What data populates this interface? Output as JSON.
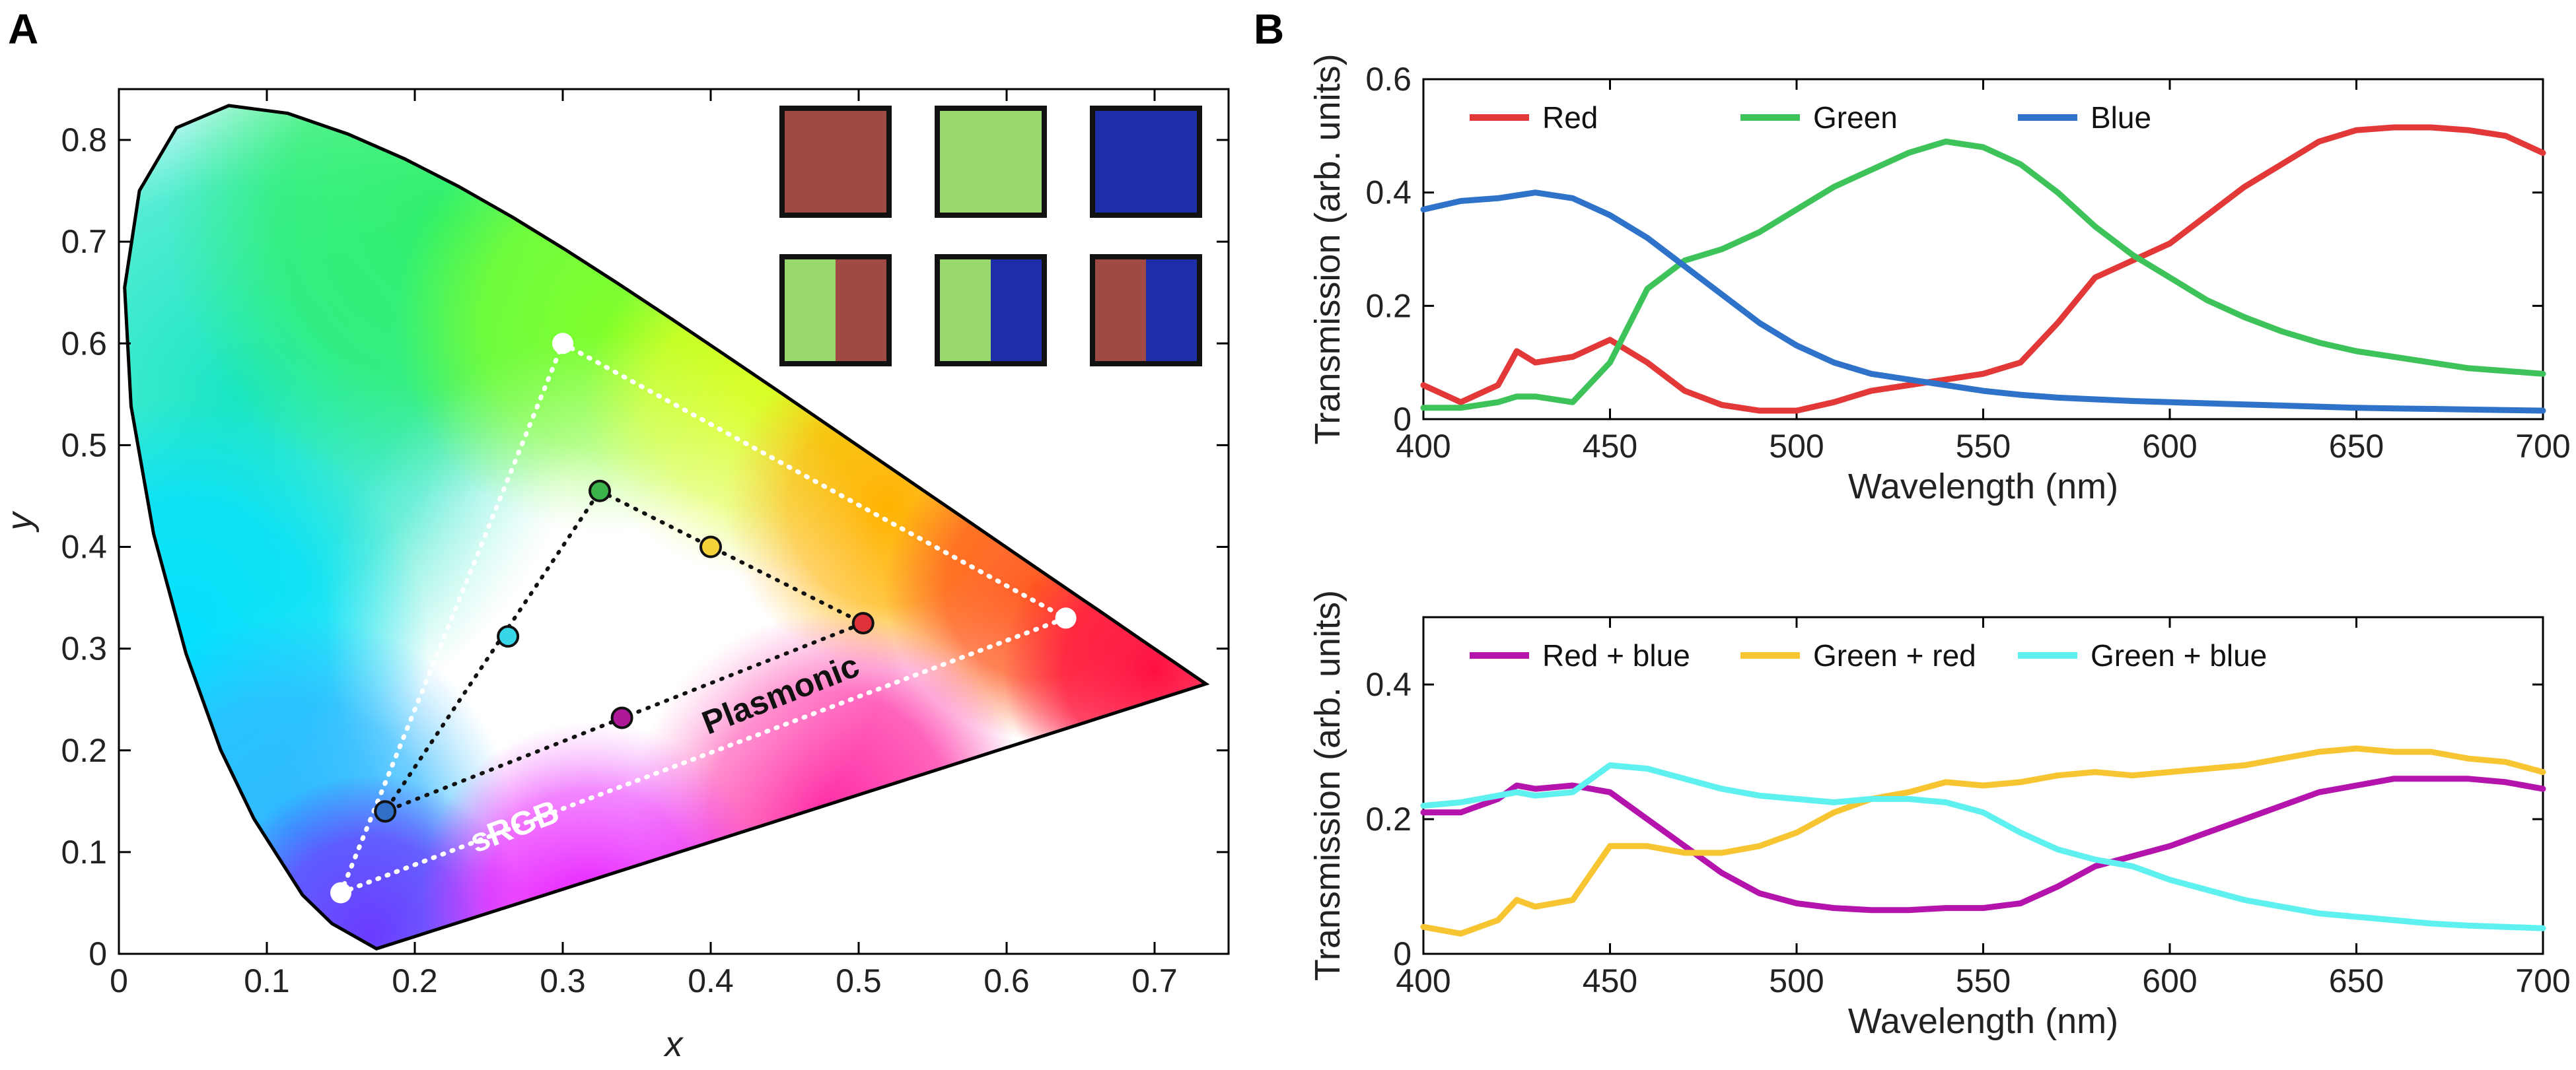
{
  "panel_a_letter": "A",
  "panel_b_letter": "B",
  "chart_data": [
    {
      "type": "scatter",
      "panel": "A",
      "xlabel": "x",
      "ylabel": "y",
      "xlim": [
        0,
        0.75
      ],
      "ylim": [
        0,
        0.85
      ],
      "xticks": [
        "0",
        "0.1",
        "0.2",
        "0.3",
        "0.4",
        "0.5",
        "0.6",
        "0.7"
      ],
      "yticks": [
        "0",
        "0.1",
        "0.2",
        "0.3",
        "0.4",
        "0.5",
        "0.6",
        "0.7",
        "0.8"
      ],
      "grid": false,
      "triangles": [
        {
          "name": "sRGB",
          "label_color": "#ffffff",
          "line_color": "#ffffff",
          "vertices": [
            [
              0.3,
              0.6
            ],
            [
              0.64,
              0.33
            ],
            [
              0.15,
              0.06
            ]
          ]
        },
        {
          "name": "Plasmonic",
          "label_color": "#111111",
          "line_color": "#111111",
          "vertices": [
            [
              0.325,
              0.455
            ],
            [
              0.503,
              0.325
            ],
            [
              0.18,
              0.14
            ]
          ]
        }
      ],
      "points": [
        {
          "color": "green",
          "x": 0.325,
          "y": 0.455,
          "fill": "#3cb44b"
        },
        {
          "color": "red",
          "x": 0.503,
          "y": 0.325,
          "fill": "#e0323a"
        },
        {
          "color": "blue",
          "x": 0.18,
          "y": 0.14,
          "fill": "#2f6fc8"
        },
        {
          "color": "yellow",
          "x": 0.4,
          "y": 0.4,
          "fill": "#f5d23a"
        },
        {
          "color": "cyan",
          "x": 0.263,
          "y": 0.312,
          "fill": "#38d6e6"
        },
        {
          "color": "magenta",
          "x": 0.34,
          "y": 0.232,
          "fill": "#b0189a"
        }
      ],
      "inset_swatches": [
        [
          "#a04a44"
        ],
        [
          "#9ad86e"
        ],
        [
          "#1c2fa8"
        ],
        [
          "#9ad86e",
          "#a04a44"
        ],
        [
          "#9ad86e",
          "#1c2fa8"
        ],
        [
          "#a04a44",
          "#1c2fa8"
        ]
      ]
    },
    {
      "type": "line",
      "panel": "B-top",
      "xlabel": "Wavelength (nm)",
      "ylabel": "Transmission (arb. units)",
      "xlim": [
        400,
        700
      ],
      "ylim": [
        0,
        0.6
      ],
      "xticks": [
        "400",
        "450",
        "500",
        "550",
        "600",
        "650",
        "700"
      ],
      "yticks": [
        "0",
        "0.2",
        "0.4",
        "0.6"
      ],
      "legend": "top-left",
      "x": [
        400,
        410,
        420,
        425,
        430,
        440,
        450,
        460,
        470,
        480,
        490,
        500,
        510,
        520,
        530,
        540,
        550,
        560,
        570,
        580,
        590,
        600,
        610,
        620,
        630,
        640,
        650,
        660,
        670,
        680,
        690,
        700
      ],
      "series": [
        {
          "name": "Red",
          "color": "#e23838",
          "values": [
            0.06,
            0.03,
            0.06,
            0.12,
            0.1,
            0.11,
            0.14,
            0.1,
            0.05,
            0.025,
            0.015,
            0.015,
            0.03,
            0.05,
            0.06,
            0.07,
            0.08,
            0.1,
            0.17,
            0.25,
            0.28,
            0.31,
            0.36,
            0.41,
            0.45,
            0.49,
            0.51,
            0.515,
            0.515,
            0.51,
            0.5,
            0.47
          ]
        },
        {
          "name": "Green",
          "color": "#3ec35a",
          "values": [
            0.02,
            0.02,
            0.03,
            0.04,
            0.04,
            0.03,
            0.1,
            0.23,
            0.28,
            0.3,
            0.33,
            0.37,
            0.41,
            0.44,
            0.47,
            0.49,
            0.48,
            0.45,
            0.4,
            0.34,
            0.29,
            0.25,
            0.21,
            0.18,
            0.155,
            0.135,
            0.12,
            0.11,
            0.1,
            0.09,
            0.085,
            0.08
          ]
        },
        {
          "name": "Blue",
          "color": "#2e72c9",
          "values": [
            0.37,
            0.385,
            0.39,
            0.395,
            0.4,
            0.39,
            0.36,
            0.32,
            0.27,
            0.22,
            0.17,
            0.13,
            0.1,
            0.08,
            0.07,
            0.06,
            0.05,
            0.043,
            0.038,
            0.035,
            0.032,
            0.03,
            0.028,
            0.026,
            0.024,
            0.022,
            0.02,
            0.019,
            0.018,
            0.017,
            0.016,
            0.015
          ]
        }
      ]
    },
    {
      "type": "line",
      "panel": "B-bottom",
      "xlabel": "Wavelength (nm)",
      "ylabel": "Transmission (arb. units)",
      "xlim": [
        400,
        700
      ],
      "ylim": [
        0,
        0.5
      ],
      "xticks": [
        "400",
        "450",
        "500",
        "550",
        "600",
        "650",
        "700"
      ],
      "yticks": [
        "0",
        "0.2",
        "0.4"
      ],
      "legend": "top-left",
      "x": [
        400,
        410,
        420,
        425,
        430,
        440,
        450,
        460,
        470,
        480,
        490,
        500,
        510,
        520,
        530,
        540,
        550,
        560,
        570,
        580,
        590,
        600,
        610,
        620,
        630,
        640,
        650,
        660,
        670,
        680,
        690,
        700
      ],
      "series": [
        {
          "name": "Red + blue",
          "color": "#b414ac",
          "values": [
            0.21,
            0.21,
            0.23,
            0.25,
            0.245,
            0.25,
            0.24,
            0.2,
            0.16,
            0.12,
            0.09,
            0.075,
            0.068,
            0.065,
            0.065,
            0.068,
            0.068,
            0.075,
            0.1,
            0.13,
            0.145,
            0.16,
            0.18,
            0.2,
            0.22,
            0.24,
            0.25,
            0.26,
            0.26,
            0.26,
            0.255,
            0.245
          ]
        },
        {
          "name": "Green + red",
          "color": "#f7c531",
          "values": [
            0.04,
            0.03,
            0.05,
            0.08,
            0.07,
            0.08,
            0.16,
            0.16,
            0.15,
            0.15,
            0.16,
            0.18,
            0.21,
            0.23,
            0.24,
            0.255,
            0.25,
            0.255,
            0.265,
            0.27,
            0.265,
            0.27,
            0.275,
            0.28,
            0.29,
            0.3,
            0.305,
            0.3,
            0.3,
            0.29,
            0.285,
            0.27
          ]
        },
        {
          "name": "Green + blue",
          "color": "#5ff0f0",
          "values": [
            0.22,
            0.225,
            0.235,
            0.24,
            0.235,
            0.24,
            0.28,
            0.275,
            0.26,
            0.245,
            0.235,
            0.23,
            0.225,
            0.23,
            0.23,
            0.225,
            0.21,
            0.18,
            0.155,
            0.14,
            0.13,
            0.11,
            0.095,
            0.08,
            0.07,
            0.06,
            0.055,
            0.05,
            0.045,
            0.042,
            0.04,
            0.038
          ]
        }
      ]
    }
  ]
}
